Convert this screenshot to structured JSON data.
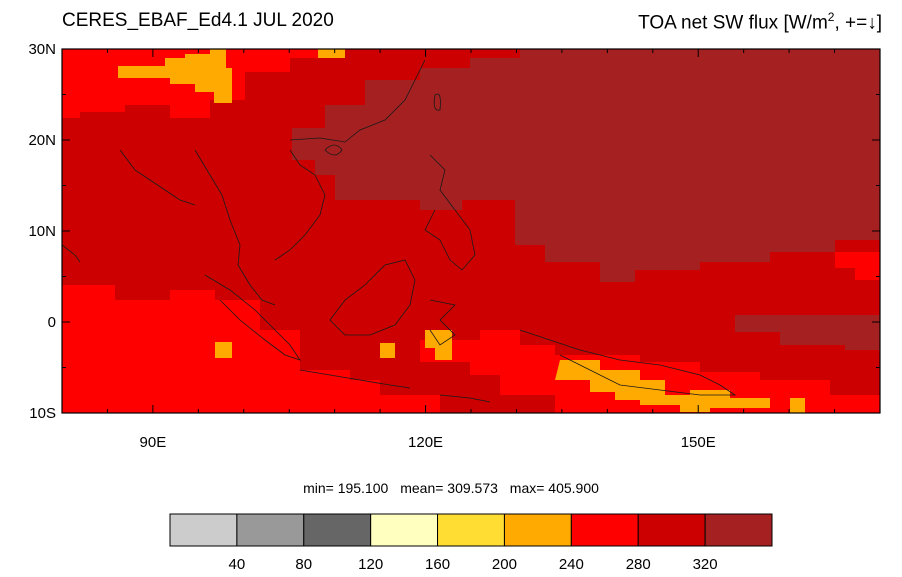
{
  "header": {
    "title_left": "CERES_EBAF_Ed4.1 JUL 2020",
    "title_right_prefix": "TOA net SW flux [W/m",
    "title_right_sup": "2",
    "title_right_mid": ", +=",
    "title_right_arrow": "↓",
    "title_right_close": "]"
  },
  "map": {
    "lon_range": [
      80,
      170
    ],
    "lat_range": [
      -10,
      30
    ],
    "lat_ticks": [
      {
        "value": 30,
        "label": "30N"
      },
      {
        "value": 20,
        "label": "20N"
      },
      {
        "value": 10,
        "label": "10N"
      },
      {
        "value": 0,
        "label": "0"
      },
      {
        "value": -10,
        "label": "10S"
      }
    ],
    "lon_ticks": [
      {
        "value": 90,
        "label": "90E"
      },
      {
        "value": 120,
        "label": "120E"
      },
      {
        "value": 150,
        "label": "150E"
      }
    ],
    "colors": {
      "c200_240": "#ffaa00",
      "c240_280": "#ff0000",
      "c280_320": "#cc0000",
      "c320_plus": "#a52020"
    }
  },
  "stats": {
    "min": "min= 195.100",
    "mean": "mean= 309.573",
    "max": "max= 405.900"
  },
  "colorbar": {
    "colors": [
      "#cccccc",
      "#999999",
      "#666666",
      "#ffffc0",
      "#ffdd33",
      "#ffaa00",
      "#ff0000",
      "#cc0000",
      "#a52020"
    ],
    "labels": [
      "40",
      "80",
      "120",
      "160",
      "200",
      "240",
      "280",
      "320"
    ]
  }
}
